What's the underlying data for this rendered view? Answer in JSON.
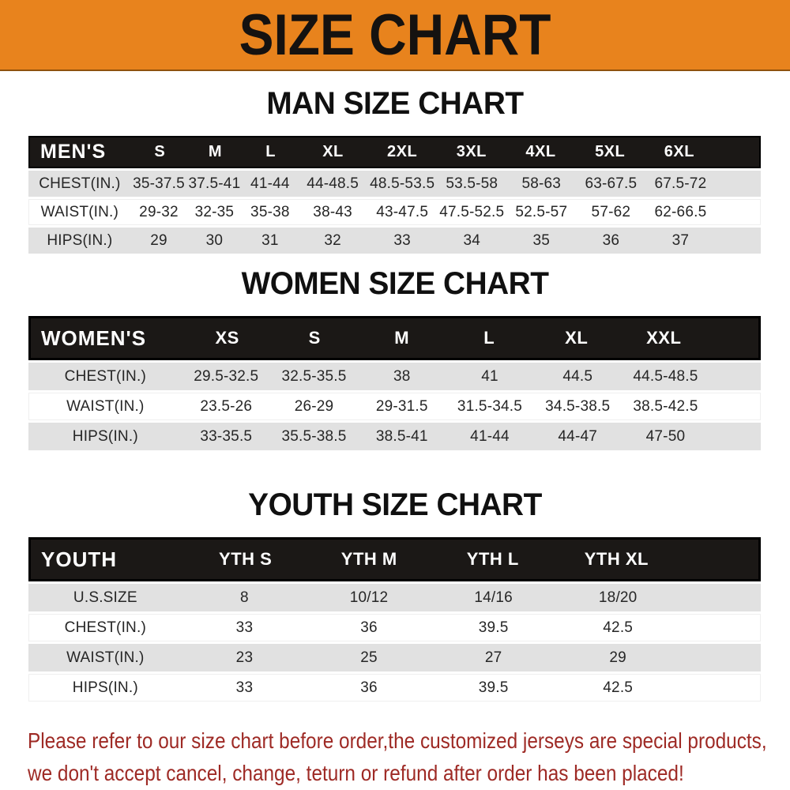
{
  "colors": {
    "banner_bg": "#E8831D",
    "table_header_bg": "#1B1816",
    "row_gray": "#E1E1E1",
    "row_white": "#FFFFFF",
    "footer_red": "#9E2A25"
  },
  "banner": {
    "title": "SIZE CHART"
  },
  "men": {
    "title": "MAN SIZE CHART",
    "header": [
      "MEN'S",
      "S",
      "M",
      "L",
      "XL",
      "2XL",
      "3XL",
      "4XL",
      "5XL",
      "6XL"
    ],
    "rows": [
      [
        "CHEST(IN.)",
        "35-37.5",
        "37.5-41",
        "41-44",
        "44-48.5",
        "48.5-53.5",
        "53.5-58",
        "58-63",
        "63-67.5",
        "67.5-72"
      ],
      [
        "WAIST(IN.)",
        "29-32",
        "32-35",
        "35-38",
        "38-43",
        "43-47.5",
        "47.5-52.5",
        "52.5-57",
        "57-62",
        "62-66.5"
      ],
      [
        "HIPS(IN.)",
        "29",
        "30",
        "31",
        "32",
        "33",
        "34",
        "35",
        "36",
        "37"
      ]
    ]
  },
  "women": {
    "title": "WOMEN SIZE CHART",
    "header": [
      "WOMEN'S",
      "XS",
      "S",
      "M",
      "L",
      "XL",
      "XXL"
    ],
    "rows": [
      [
        "CHEST(IN.)",
        "29.5-32.5",
        "32.5-35.5",
        "38",
        "41",
        "44.5",
        "44.5-48.5"
      ],
      [
        "WAIST(IN.)",
        "23.5-26",
        "26-29",
        "29-31.5",
        "31.5-34.5",
        "34.5-38.5",
        "38.5-42.5"
      ],
      [
        "HIPS(IN.)",
        "33-35.5",
        "35.5-38.5",
        "38.5-41",
        "41-44",
        "44-47",
        "47-50"
      ]
    ]
  },
  "youth": {
    "title": "YOUTH SIZE CHART",
    "header": [
      "YOUTH",
      "YTH S",
      "YTH M",
      "YTH L",
      "YTH XL"
    ],
    "rows": [
      [
        "U.S.SIZE",
        "8",
        "10/12",
        "14/16",
        "18/20"
      ],
      [
        "CHEST(IN.)",
        "33",
        "36",
        "39.5",
        "42.5"
      ],
      [
        "WAIST(IN.)",
        "23",
        "25",
        "27",
        "29"
      ],
      [
        "HIPS(IN.)",
        "33",
        "36",
        "39.5",
        "42.5"
      ]
    ]
  },
  "footer": {
    "line1": "Please refer to our size chart before order,the customized jerseys are special products,",
    "line2": "we don't accept cancel, change, teturn or refund after order has been placed!"
  }
}
